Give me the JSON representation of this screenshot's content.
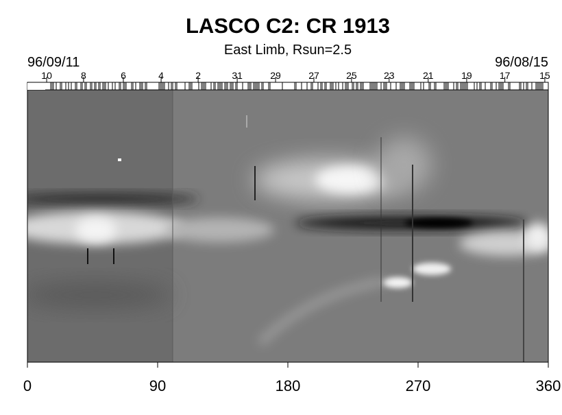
{
  "chart_data": {
    "type": "synoptic-map",
    "title": "LASCO C2: CR 1913",
    "subtitle": "East Limb, Rsun=2.5",
    "start_date": "96/09/11",
    "end_date": "96/08/15",
    "xlim": [
      0,
      360
    ],
    "xticks": [
      0,
      90,
      180,
      270,
      360
    ],
    "top_ticks": [
      {
        "value": 13.3,
        "label": "10"
      },
      {
        "value": 38.8,
        "label": "8"
      },
      {
        "value": 66.3,
        "label": "6"
      },
      {
        "value": 92.4,
        "label": "4"
      },
      {
        "value": 118,
        "label": "2"
      },
      {
        "value": 145,
        "label": "31"
      },
      {
        "value": 171.5,
        "label": "29"
      },
      {
        "value": 198,
        "label": "27"
      },
      {
        "value": 224,
        "label": "25"
      },
      {
        "value": 250,
        "label": "23"
      },
      {
        "value": 277,
        "label": "21"
      },
      {
        "value": 303.6,
        "label": "19"
      },
      {
        "value": 330,
        "label": "17"
      },
      {
        "value": 357.6,
        "label": "15"
      }
    ]
  }
}
